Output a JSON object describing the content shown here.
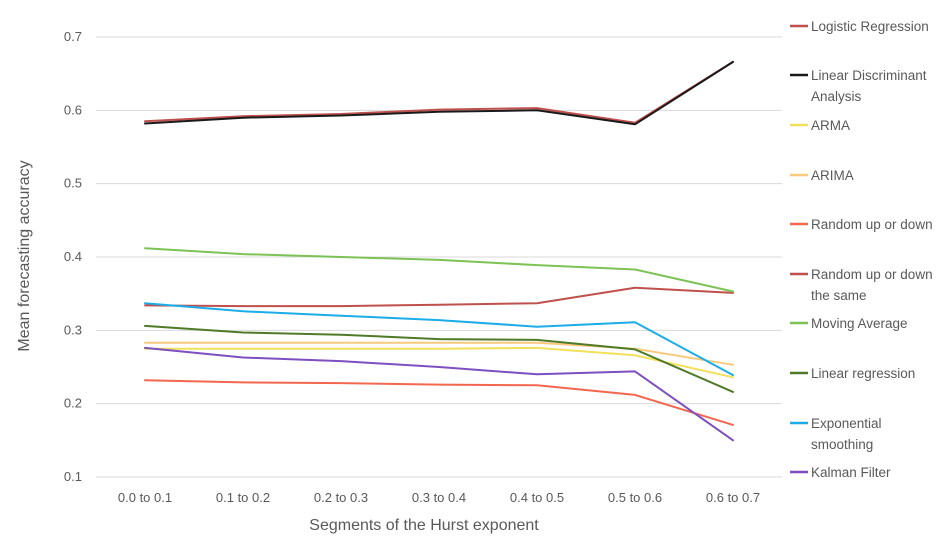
{
  "chart_data": {
    "type": "line",
    "title": "",
    "xlabel": "Segments of the Hurst exponent",
    "ylabel": "Mean forecasting accuracy",
    "categories": [
      "0.0 to 0.1",
      "0.1 to 0.2",
      "0.2 to 0.3",
      "0.3 to 0.4",
      "0.4 to 0.5",
      "0.5 to 0.6",
      "0.6 to 0.7"
    ],
    "ylim": [
      0.1,
      0.7
    ],
    "yticks": [
      "0.1",
      "0.2",
      "0.3",
      "0.4",
      "0.5",
      "0.6",
      "0.7"
    ],
    "grid": true,
    "legend_position": "right",
    "series": [
      {
        "name": "Logistic Regression",
        "legend_lines": [
          "Logistic Regression"
        ],
        "color": "#c0504d",
        "values": [
          0.585,
          0.592,
          0.595,
          0.601,
          0.603,
          0.583,
          0.666
        ]
      },
      {
        "name": "Linear Discriminant Analysis",
        "legend_lines": [
          "Linear Discriminant",
          "Analysis"
        ],
        "color": "#1a1a1a",
        "values": [
          0.582,
          0.59,
          0.593,
          0.598,
          0.6,
          0.581,
          0.666
        ]
      },
      {
        "name": "ARMA",
        "legend_lines": [
          "ARMA"
        ],
        "color": "#f2e05a",
        "values": [
          0.275,
          0.275,
          0.275,
          0.275,
          0.276,
          0.266,
          0.236
        ]
      },
      {
        "name": "ARIMA",
        "legend_lines": [
          "ARIMA"
        ],
        "color": "#f9c97c",
        "values": [
          0.283,
          0.283,
          0.283,
          0.283,
          0.283,
          0.275,
          0.253
        ]
      },
      {
        "name": "Random up or down",
        "legend_lines": [
          "Random up or down"
        ],
        "color": "#f4674f",
        "values": [
          0.232,
          0.229,
          0.228,
          0.226,
          0.225,
          0.212,
          0.171
        ]
      },
      {
        "name": "Random up or down the same",
        "legend_lines": [
          "Random up or down",
          "the same"
        ],
        "color": "#c0504d",
        "values": [
          0.334,
          0.333,
          0.333,
          0.335,
          0.337,
          0.358,
          0.351
        ]
      },
      {
        "name": "Moving Average",
        "legend_lines": [
          "Moving Average"
        ],
        "color": "#7dc255",
        "values": [
          0.412,
          0.404,
          0.4,
          0.396,
          0.389,
          0.383,
          0.353
        ]
      },
      {
        "name": "Linear regression",
        "legend_lines": [
          "Linear regression"
        ],
        "color": "#4f7a28",
        "values": [
          0.306,
          0.297,
          0.294,
          0.288,
          0.287,
          0.274,
          0.216
        ]
      },
      {
        "name": "Exponential smoothing",
        "legend_lines": [
          "Exponential",
          "smoothing"
        ],
        "color": "#1cace8",
        "values": [
          0.337,
          0.326,
          0.32,
          0.314,
          0.305,
          0.311,
          0.239
        ]
      },
      {
        "name": "Kalman Filter",
        "legend_lines": [
          "Kalman Filter"
        ],
        "color": "#7d4fc0",
        "values": [
          0.276,
          0.263,
          0.258,
          0.25,
          0.24,
          0.244,
          0.15
        ]
      }
    ]
  }
}
